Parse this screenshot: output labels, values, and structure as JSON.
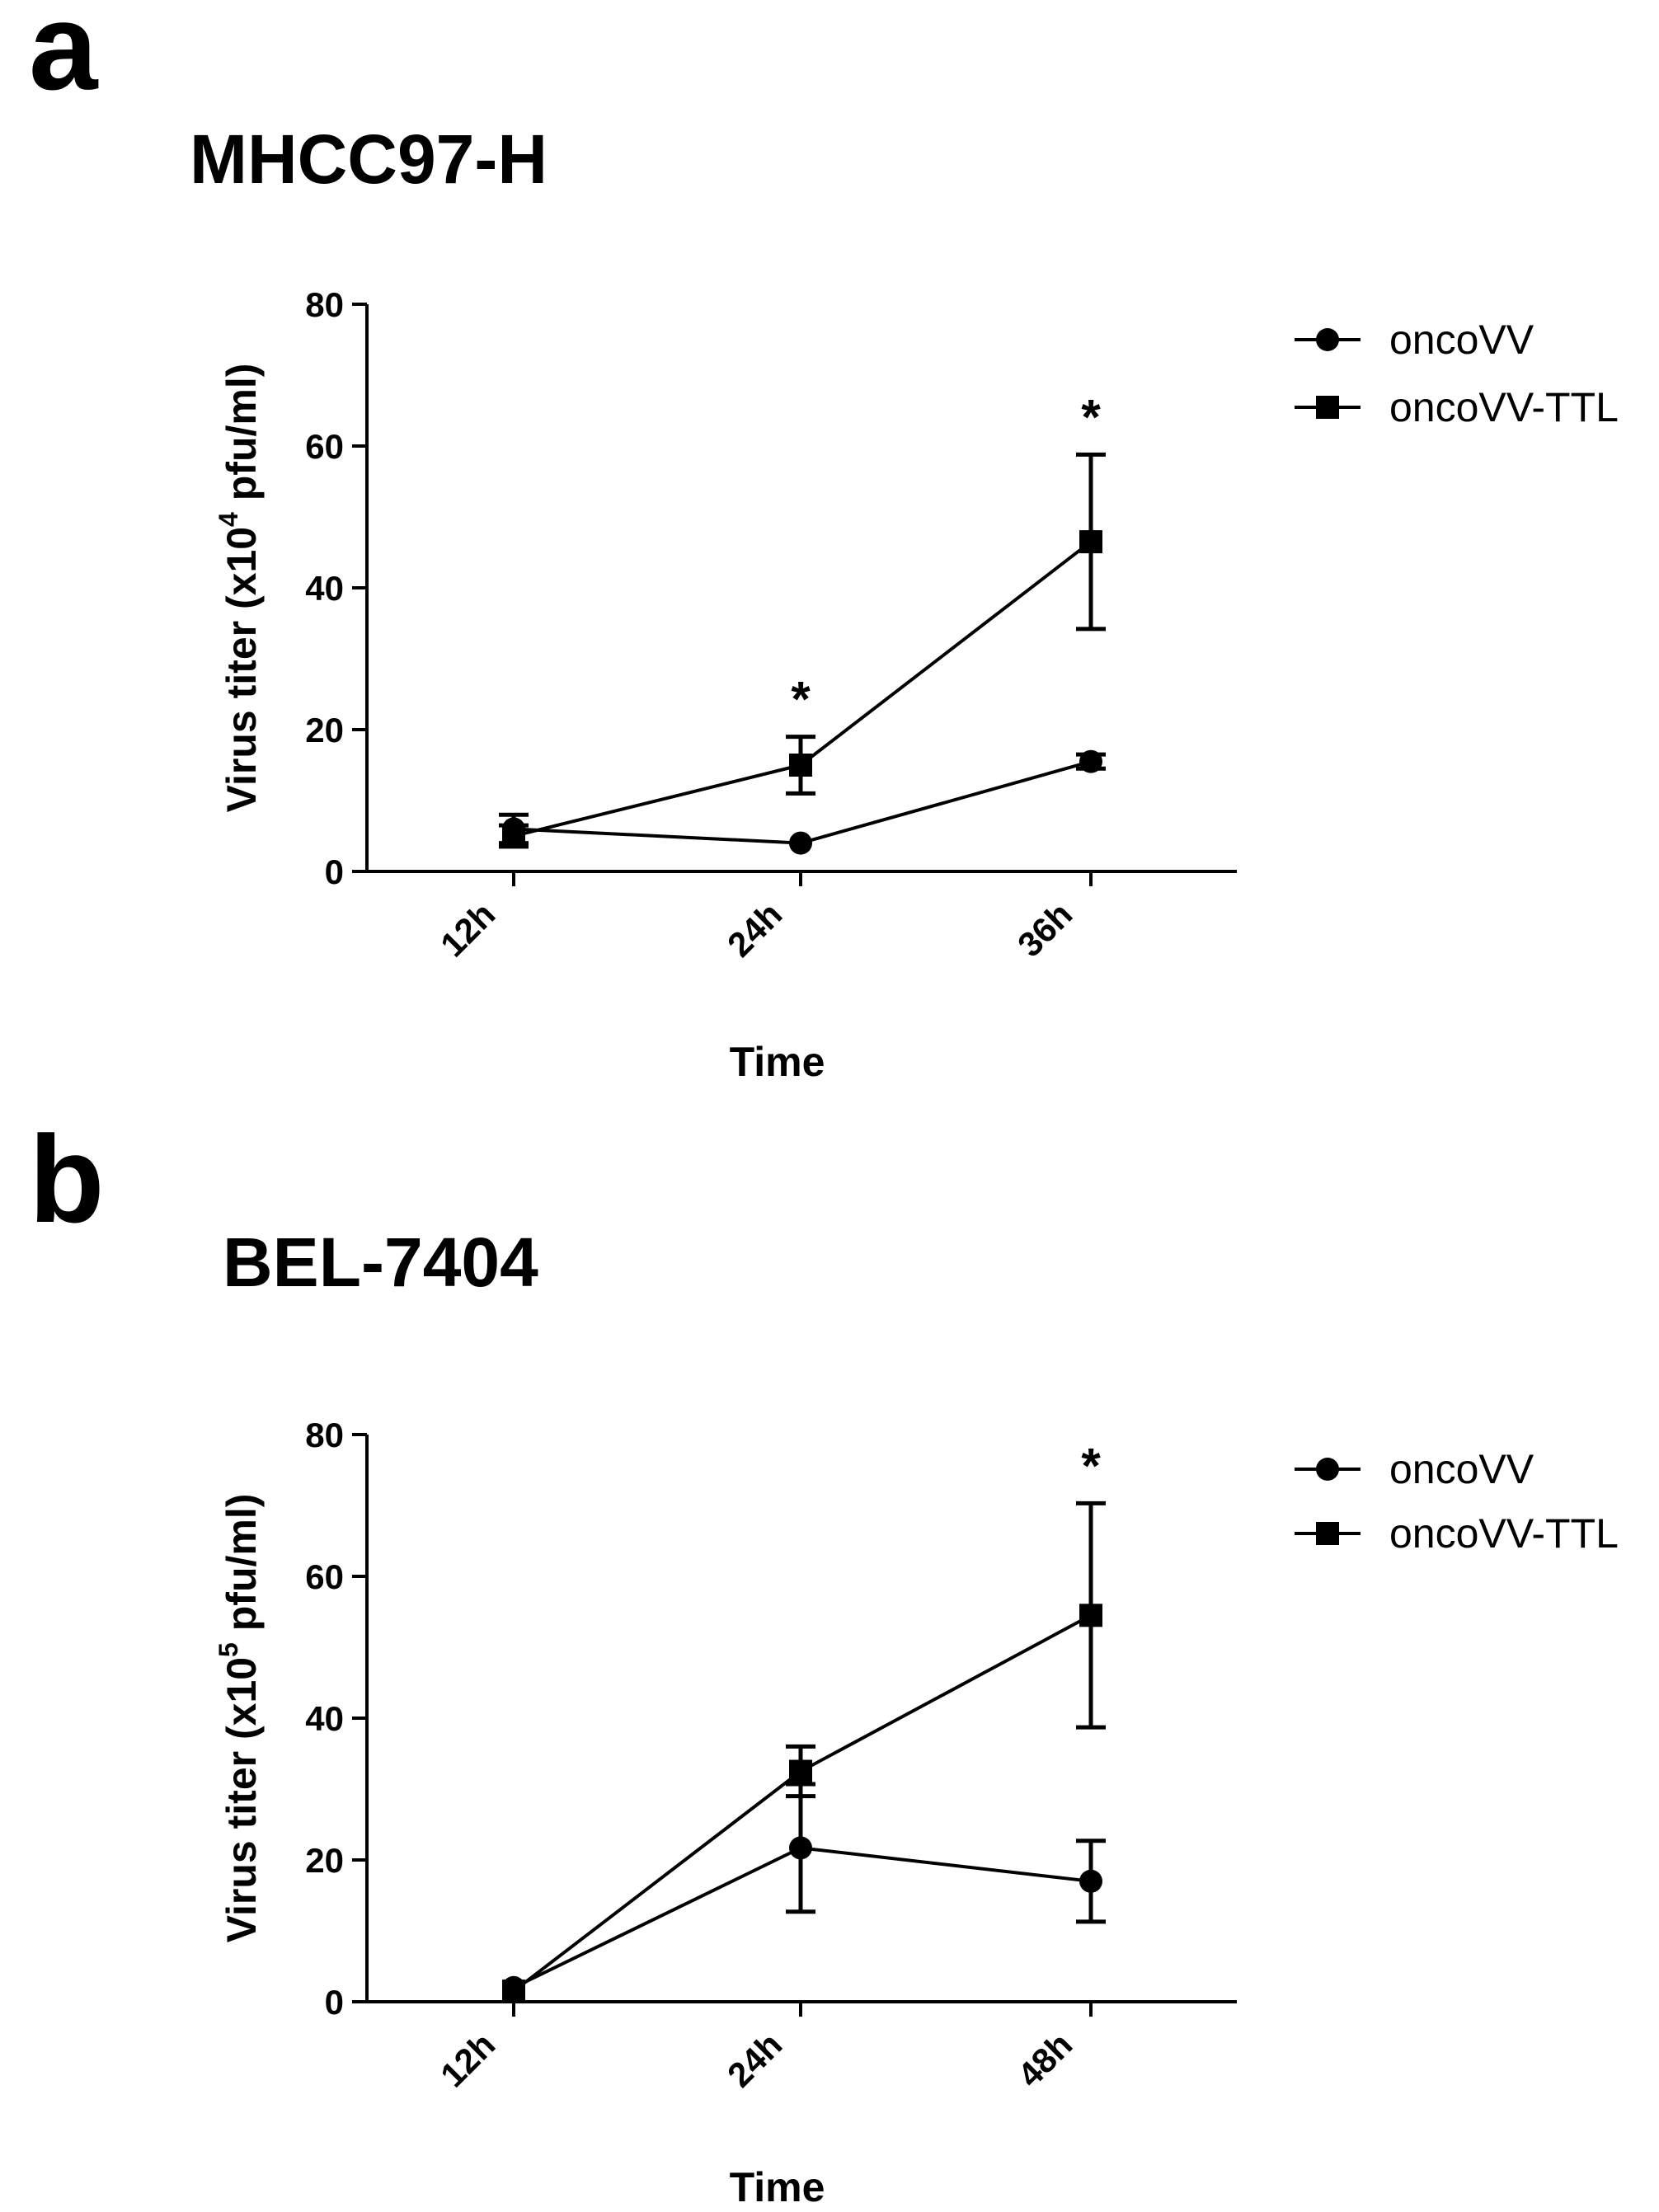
{
  "chart_data": [
    {
      "panel": "a",
      "type": "line",
      "title": "MHCC97-H",
      "xlabel": "Time",
      "ylabel": "Virus titer (x10",
      "ylabel_sup": "4",
      "ylabel_end": " pfu/ml)",
      "categories": [
        "12h",
        "24h",
        "36h"
      ],
      "ylim": [
        0,
        80
      ],
      "yticks": [
        0,
        20,
        40,
        60,
        80
      ],
      "grid": false,
      "legend_position": "top-right",
      "series": [
        {
          "name": "oncoVV",
          "marker": "circle",
          "values": [
            6,
            4,
            15.5
          ],
          "errors": [
            2,
            0.5,
            1
          ]
        },
        {
          "name": "oncoVV-TTL",
          "marker": "square",
          "values": [
            5,
            15,
            46.5
          ],
          "errors": [
            1.5,
            4,
            12.3
          ]
        }
      ],
      "annotations": [
        {
          "category": "24h",
          "text": "*",
          "value": 19
        },
        {
          "category": "36h",
          "text": "*",
          "value": 58.8
        }
      ]
    },
    {
      "panel": "b",
      "type": "line",
      "title": "BEL-7404",
      "xlabel": "Time",
      "ylabel": "Virus titer (x10",
      "ylabel_sup": "5",
      "ylabel_end": " pfu/ml)",
      "categories": [
        "12h",
        "24h",
        "48h"
      ],
      "ylim": [
        0,
        80
      ],
      "yticks": [
        0,
        20,
        40,
        60,
        80
      ],
      "grid": false,
      "legend_position": "top-right",
      "series": [
        {
          "name": "oncoVV",
          "marker": "circle",
          "values": [
            2,
            21.7,
            17
          ],
          "errors": [
            0.5,
            9,
            5.7
          ]
        },
        {
          "name": "oncoVV-TTL",
          "marker": "square",
          "values": [
            1.5,
            32.5,
            54.5
          ],
          "errors": [
            0.5,
            3.5,
            15.8
          ]
        }
      ],
      "annotations": [
        {
          "category": "48h",
          "text": "*",
          "value": 70.3
        }
      ]
    }
  ]
}
